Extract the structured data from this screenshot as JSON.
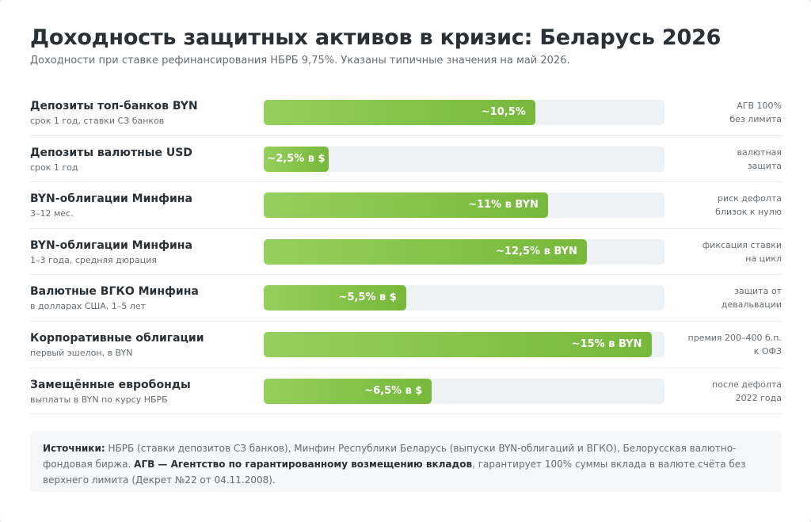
{
  "header": {
    "title": "Доходность защитных активов в кризис: Беларусь 2026",
    "subtitle": "Доходности при ставке рефинансирования НБРБ 9,75%. Указаны типичные значения на май 2026."
  },
  "chart_data": {
    "type": "bar",
    "orientation": "horizontal",
    "xlim": [
      0,
      15.5
    ],
    "rows": [
      {
        "label": "Депозиты топ-банков BYN",
        "sub": "срок 1 год, ставки СЗ банков",
        "value": 10.5,
        "value_label": "~10,5%",
        "note1": "АГВ 100%",
        "note2": "без лимита"
      },
      {
        "label": "Депозиты валютные USD",
        "sub": "срок 1 год",
        "value": 2.5,
        "value_label": "~2,5% в $",
        "note1": "валютная",
        "note2": "защита"
      },
      {
        "label": "BYN-облигации Минфина",
        "sub": "3–12 мес.",
        "value": 11,
        "value_label": "~11% в BYN",
        "note1": "риск дефолта",
        "note2": "близок к нулю"
      },
      {
        "label": "BYN-облигации Минфина",
        "sub": "1–3 года, средняя дюрация",
        "value": 12.5,
        "value_label": "~12,5% в BYN",
        "note1": "фиксация ставки",
        "note2": "на цикл"
      },
      {
        "label": "Валютные ВГКО Минфина",
        "sub": "в долларах США, 1–5 лет",
        "value": 5.5,
        "value_label": "~5,5% в $",
        "note1": "защита от",
        "note2": "девальвации"
      },
      {
        "label": "Корпоративные облигации",
        "sub": "первый эшелон, в BYN",
        "value": 15,
        "value_label": "~15% в BYN",
        "note1": "премия 200–400 б.п.",
        "note2": "к ОФЗ"
      },
      {
        "label": "Замещённые евробонды",
        "sub": "выплаты в BYN по курсу НБРБ",
        "value": 6.5,
        "value_label": "~6,5% в $",
        "note1": "после дефолта",
        "note2": "2022 года"
      }
    ]
  },
  "sources": {
    "label": "Источники:",
    "text1": " НБРБ (ставки депозитов СЗ банков), Минфин Республики Беларусь (выпуски BYN-облигаций и ВГКО), Белорусская валютно-фондовая биржа. ",
    "agv": "АГВ — Агентство по гарантированному возмещению вкладов",
    "text2": ", гарантирует 100% суммы вклада в валюте счёта без верхнего лимита (Декрет №22 от 04.11.2008)."
  },
  "colors": {
    "bar_start": "#95cf5c",
    "bar_end": "#77b83b",
    "track": "#eff2f5",
    "text": "#2b3035",
    "muted": "#666c72"
  }
}
